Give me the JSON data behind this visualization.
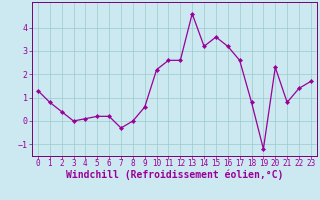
{
  "x": [
    0,
    1,
    2,
    3,
    4,
    5,
    6,
    7,
    8,
    9,
    10,
    11,
    12,
    13,
    14,
    15,
    16,
    17,
    18,
    19,
    20,
    21,
    22,
    23
  ],
  "y": [
    1.3,
    0.8,
    0.4,
    0.0,
    0.1,
    0.2,
    0.2,
    -0.3,
    0.0,
    0.6,
    2.2,
    2.6,
    2.6,
    4.6,
    3.2,
    3.6,
    3.2,
    2.6,
    0.8,
    -1.2,
    2.3,
    0.8,
    1.4,
    1.7
  ],
  "line_color": "#990099",
  "marker": "D",
  "marker_size": 2.2,
  "bg_color": "#cce8f0",
  "grid_color": "#99cccc",
  "xlabel": "Windchill (Refroidissement éolien,°C)",
  "xlabel_color": "#990099",
  "xlim": [
    -0.5,
    23.5
  ],
  "ylim": [
    -1.5,
    5.1
  ],
  "yticks": [
    -1,
    0,
    1,
    2,
    3,
    4
  ],
  "xticks": [
    0,
    1,
    2,
    3,
    4,
    5,
    6,
    7,
    8,
    9,
    10,
    11,
    12,
    13,
    14,
    15,
    16,
    17,
    18,
    19,
    20,
    21,
    22,
    23
  ],
  "tick_color": "#990099",
  "tick_fontsize": 5.5,
  "xlabel_fontsize": 7.0,
  "spine_color": "#770077",
  "linewidth": 0.9
}
